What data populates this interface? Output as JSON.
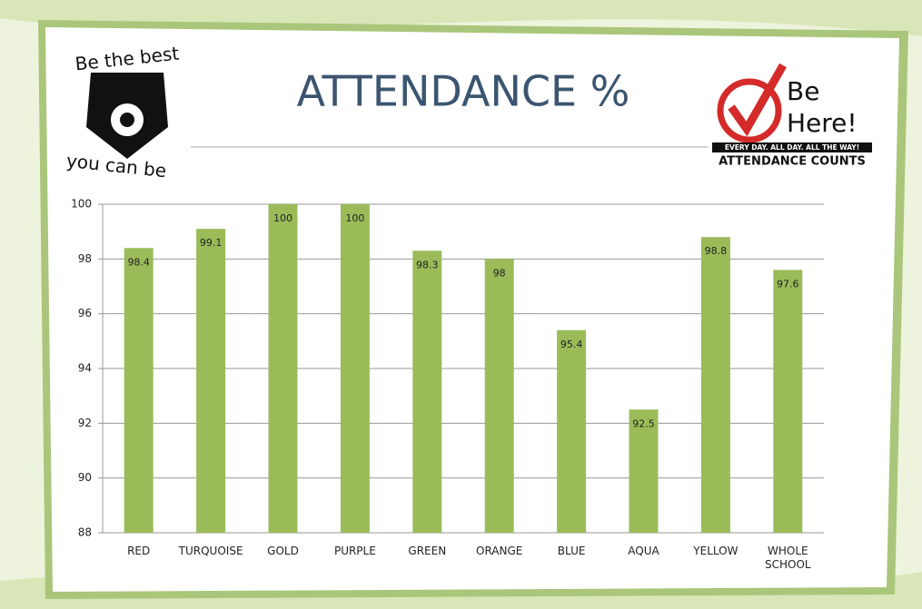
{
  "chart_data": {
    "type": "bar",
    "title": "ATTENDANCE %",
    "annotations": [
      "Be the best",
      "you can be",
      "Be",
      "Here!",
      "EVERY DAY. ALL DAY. ALL THE WAY!",
      "ATTENDANCE COUNTS"
    ],
    "categories": [
      "RED",
      "TURQUOISE",
      "GOLD",
      "PURPLE",
      "GREEN",
      "ORANGE",
      "BLUE",
      "AQUA",
      "YELLOW",
      "WHOLE SCHOOL"
    ],
    "values": [
      98.4,
      99.1,
      100,
      100,
      98.3,
      98,
      95.4,
      92.5,
      98.8,
      97.6
    ],
    "color": "#9bbb59",
    "ylim": [
      88,
      100
    ],
    "yticks": [
      88,
      90,
      92,
      94,
      96,
      98,
      100
    ],
    "grid": true
  }
}
